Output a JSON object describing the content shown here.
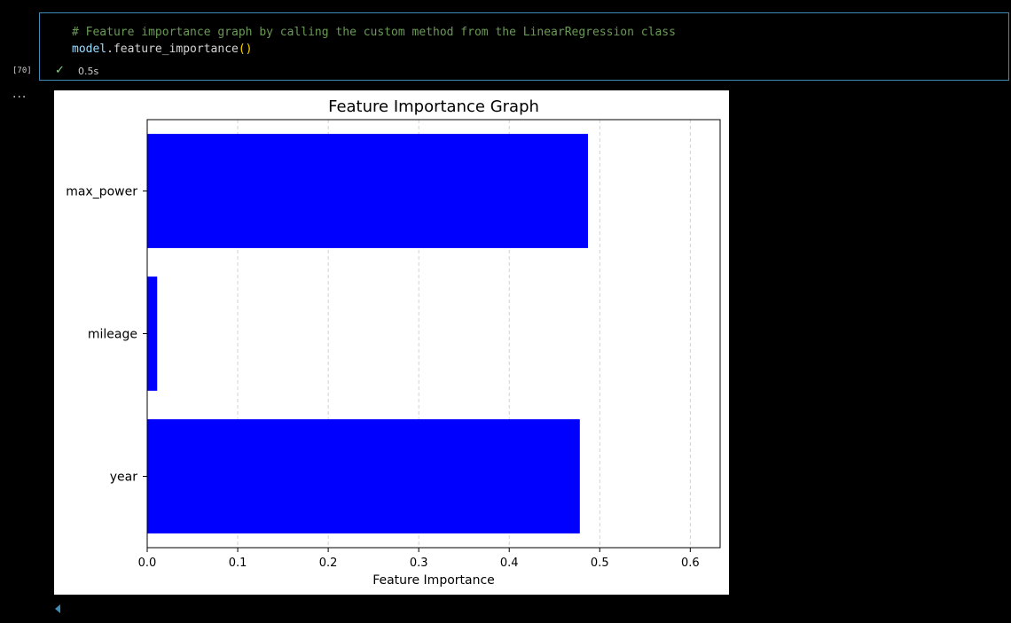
{
  "cell": {
    "code_comment": "# Feature importance graph by calling the custom method from the LinearRegression class",
    "code_var": "model",
    "code_dot": ".",
    "code_fn": "feature_importance",
    "code_parens": "()",
    "exec_count": "[70]",
    "status_icon": "checkmark-icon",
    "exec_time": "0.5s",
    "output_more": "..."
  },
  "chart_data": {
    "type": "bar",
    "orientation": "horizontal",
    "title": "Feature Importance Graph",
    "xlabel": "Feature Importance",
    "ylabel": "",
    "categories": [
      "year",
      "mileage",
      "max_power"
    ],
    "values": [
      0.478,
      0.011,
      0.487
    ],
    "xlim": [
      0.0,
      0.633
    ],
    "xticks": [
      "0.0",
      "0.1",
      "0.2",
      "0.3",
      "0.4",
      "0.5",
      "0.6"
    ],
    "grid": "x-dashed",
    "bar_color": "#0000ff"
  }
}
